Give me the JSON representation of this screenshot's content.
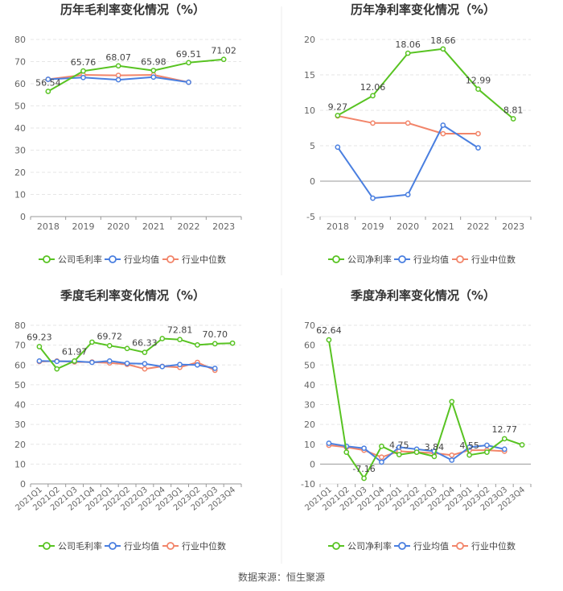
{
  "colors": {
    "company": "#58c322",
    "industry_avg": "#4a7fe0",
    "industry_median": "#f2856a",
    "grid": "#e6e6e6",
    "axis": "#999999",
    "tick_text": "#666666",
    "title_text": "#333333",
    "label_text": "#444444"
  },
  "legend_labels": {
    "company_gross": "公司毛利率",
    "company_net": "公司净利率",
    "industry_avg": "行业均值",
    "industry_median": "行业中位数"
  },
  "source_note": "数据来源：恒生聚源",
  "chart_data": [
    {
      "id": "annual-gross",
      "type": "line",
      "title": "历年毛利率变化情况（%）",
      "categories": [
        "2018",
        "2019",
        "2020",
        "2021",
        "2022",
        "2023"
      ],
      "ylim": [
        0,
        80
      ],
      "yticks": [
        0,
        10,
        20,
        30,
        40,
        50,
        60,
        70,
        80
      ],
      "rotate_x_labels": false,
      "series": [
        {
          "name": "公司毛利率",
          "key": "company",
          "values": [
            56.54,
            65.76,
            68.07,
            65.98,
            69.51,
            71.02
          ],
          "labels": [
            "56.54",
            "65.76",
            "68.07",
            "65.98",
            "69.51",
            "71.02"
          ]
        },
        {
          "name": "行业均值",
          "key": "industry_avg",
          "values": [
            62.0,
            62.8,
            61.8,
            63.0,
            60.7,
            null
          ]
        },
        {
          "name": "行业中位数",
          "key": "industry_median",
          "values": [
            62.0,
            64.0,
            63.8,
            64.0,
            60.7,
            null
          ]
        }
      ]
    },
    {
      "id": "annual-net",
      "type": "line",
      "title": "历年净利率变化情况（%）",
      "categories": [
        "2018",
        "2019",
        "2020",
        "2021",
        "2022",
        "2023"
      ],
      "ylim": [
        -5,
        20
      ],
      "yticks": [
        -5,
        0,
        5,
        10,
        15,
        20
      ],
      "rotate_x_labels": false,
      "series": [
        {
          "name": "公司净利率",
          "key": "company",
          "values": [
            9.27,
            12.06,
            18.06,
            18.66,
            12.99,
            8.81
          ],
          "labels": [
            "9.27",
            "12.06",
            "18.06",
            "18.66",
            "12.99",
            "8.81"
          ]
        },
        {
          "name": "行业均值",
          "key": "industry_avg",
          "values": [
            4.8,
            -2.4,
            -1.9,
            7.9,
            4.7,
            null
          ]
        },
        {
          "name": "行业中位数",
          "key": "industry_median",
          "values": [
            9.2,
            8.2,
            8.2,
            6.7,
            6.7,
            null
          ]
        }
      ]
    },
    {
      "id": "quarterly-gross",
      "type": "line",
      "title": "季度毛利率变化情况（%）",
      "categories": [
        "2021Q1",
        "2021Q2",
        "2021Q3",
        "2021Q4",
        "2022Q1",
        "2022Q2",
        "2022Q3",
        "2022Q4",
        "2023Q1",
        "2023Q2",
        "2023Q3",
        "2023Q4"
      ],
      "ylim": [
        0,
        80
      ],
      "yticks": [
        0,
        10,
        20,
        30,
        40,
        50,
        60,
        70,
        80
      ],
      "rotate_x_labels": true,
      "series": [
        {
          "name": "公司毛利率",
          "key": "company",
          "values": [
            69.23,
            58.0,
            61.97,
            71.5,
            69.72,
            68.3,
            66.33,
            73.3,
            72.81,
            70.1,
            70.7,
            71.0
          ],
          "labels": [
            "69.23",
            null,
            "61.97",
            null,
            "69.72",
            null,
            "66.33",
            null,
            "72.81",
            null,
            "70.70",
            null
          ]
        },
        {
          "name": "行业均值",
          "key": "industry_avg",
          "values": [
            62.0,
            61.8,
            61.9,
            61.3,
            62.0,
            60.8,
            60.6,
            59.2,
            60.2,
            60.0,
            58.3,
            null
          ]
        },
        {
          "name": "行业中位数",
          "key": "industry_median",
          "values": [
            61.7,
            62.0,
            61.5,
            61.5,
            61.0,
            60.3,
            58.0,
            59.3,
            58.8,
            61.3,
            57.3,
            null
          ]
        }
      ]
    },
    {
      "id": "quarterly-net",
      "type": "line",
      "title": "季度净利率变化情况（%）",
      "categories": [
        "2021Q1",
        "2021Q2",
        "2021Q3",
        "2021Q4",
        "2022Q1",
        "2022Q2",
        "2022Q3",
        "2022Q4",
        "2023Q1",
        "2023Q2",
        "2023Q3",
        "2023Q4"
      ],
      "ylim": [
        -10,
        70
      ],
      "yticks": [
        -10,
        0,
        10,
        20,
        30,
        40,
        50,
        60,
        70
      ],
      "rotate_x_labels": true,
      "series": [
        {
          "name": "公司净利率",
          "key": "company",
          "values": [
            62.64,
            6.0,
            -7.16,
            9.0,
            4.75,
            6.0,
            3.84,
            31.5,
            4.55,
            6.0,
            12.77,
            9.7
          ],
          "labels": [
            "62.64",
            null,
            "-7.16",
            null,
            "4.75",
            null,
            "3.84",
            null,
            "4.55",
            null,
            "12.77",
            null
          ]
        },
        {
          "name": "行业均值",
          "key": "industry_avg",
          "values": [
            10.5,
            9.0,
            8.0,
            1.0,
            8.5,
            7.5,
            6.5,
            2.0,
            8.5,
            9.5,
            7.5,
            null
          ]
        },
        {
          "name": "行业中位数",
          "key": "industry_median",
          "values": [
            9.5,
            8.5,
            7.0,
            3.5,
            6.5,
            6.0,
            5.5,
            4.5,
            7.0,
            7.0,
            6.5,
            null
          ]
        }
      ]
    }
  ]
}
